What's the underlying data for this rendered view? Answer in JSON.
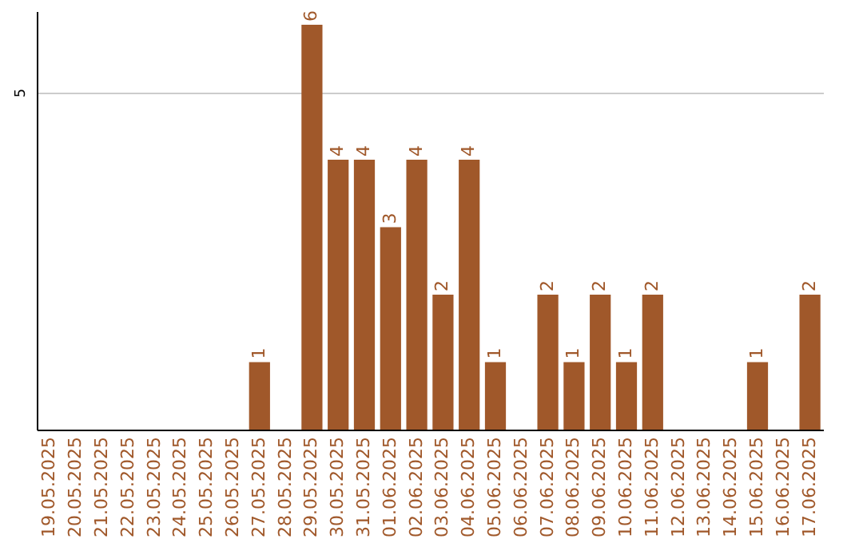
{
  "chart_data": {
    "type": "bar",
    "categories": [
      "19.05.2025",
      "20.05.2025",
      "21.05.2025",
      "22.05.2025",
      "23.05.2025",
      "24.05.2025",
      "25.05.2025",
      "26.05.2025",
      "27.05.2025",
      "28.05.2025",
      "29.05.2025",
      "30.05.2025",
      "31.05.2025",
      "01.06.2025",
      "02.06.2025",
      "03.06.2025",
      "04.06.2025",
      "05.06.2025",
      "06.06.2025",
      "07.06.2025",
      "08.06.2025",
      "09.06.2025",
      "10.06.2025",
      "11.06.2025",
      "12.06.2025",
      "13.06.2025",
      "14.06.2025",
      "15.06.2025",
      "16.06.2025",
      "17.06.2025"
    ],
    "values": [
      0,
      0,
      0,
      0,
      0,
      0,
      0,
      0,
      1,
      0,
      6,
      4,
      4,
      3,
      4,
      2,
      4,
      1,
      0,
      2,
      1,
      2,
      1,
      2,
      0,
      0,
      0,
      1,
      0,
      2
    ],
    "value_labels": [
      null,
      null,
      null,
      null,
      null,
      null,
      null,
      null,
      "1",
      null,
      "6",
      "4",
      "4",
      "3",
      "4",
      "2",
      "4",
      "1",
      null,
      "2",
      "1",
      "2",
      "1",
      "2",
      null,
      null,
      null,
      "1",
      null,
      "2"
    ],
    "color": "#a0582a",
    "ylim": [
      0,
      6.2
    ],
    "yticks": [
      5
    ],
    "grid": "y"
  }
}
